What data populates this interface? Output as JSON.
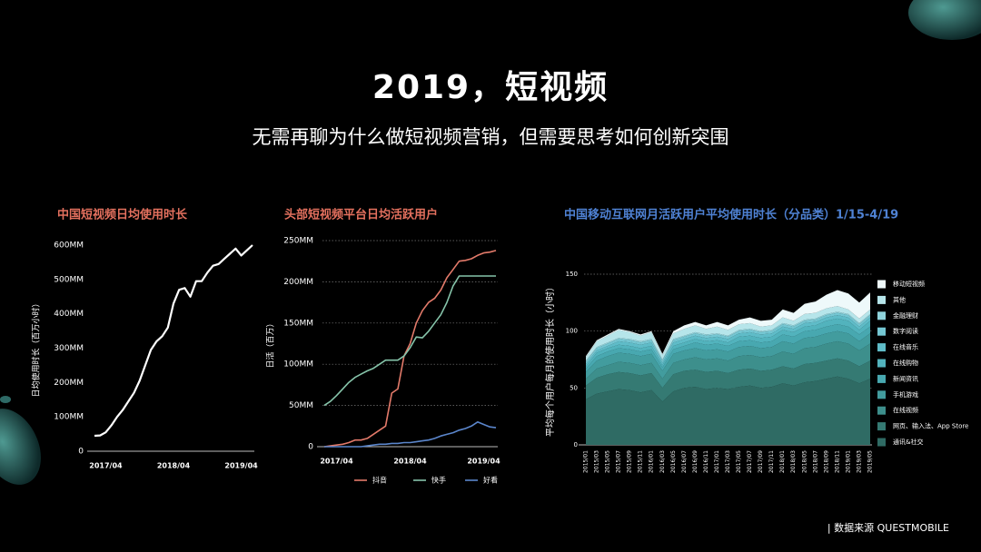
{
  "title": "2019，短视频",
  "subtitle": "无需再聊为什么做短视频营销，但需要思考如何创新突围",
  "source": "| 数据来源 QUESTMOBILE",
  "chart_data": [
    {
      "type": "line",
      "title": "中国短视频日均使用时长",
      "ylabel": "日均使用时长（百万小时）",
      "x": [
        "2017/02",
        "2017/03",
        "2017/04",
        "2017/05",
        "2017/06",
        "2017/07",
        "2017/08",
        "2017/09",
        "2017/10",
        "2017/11",
        "2017/12",
        "2018/01",
        "2018/02",
        "2018/03",
        "2018/04",
        "2018/05",
        "2018/06",
        "2018/07",
        "2018/08",
        "2018/09",
        "2018/10",
        "2018/11",
        "2018/12",
        "2019/01",
        "2019/02",
        "2019/03",
        "2019/04",
        "2019/05",
        "2019/06"
      ],
      "xticks": [
        "2017/04",
        "2018/04",
        "2019/04"
      ],
      "values": [
        45,
        46,
        55,
        75,
        100,
        120,
        145,
        170,
        205,
        250,
        295,
        320,
        335,
        360,
        430,
        470,
        475,
        450,
        495,
        495,
        520,
        540,
        545,
        560,
        575,
        590,
        570,
        585,
        600
      ],
      "color": "#ffffff",
      "ylim": [
        0,
        600
      ],
      "yticks": [
        0,
        {
          "value": 100,
          "label": "100MM"
        },
        {
          "value": 200,
          "label": "200MM"
        },
        {
          "value": 300,
          "label": "300MM"
        },
        {
          "value": 400,
          "label": "400MM"
        },
        {
          "value": 500,
          "label": "500MM"
        },
        {
          "value": 600,
          "label": "600MM"
        }
      ],
      "grid": false
    },
    {
      "type": "line",
      "title": "头部短视频平台日均活跃用户",
      "ylabel": "日活（百万）",
      "x": [
        "2017/02",
        "2017/03",
        "2017/04",
        "2017/05",
        "2017/06",
        "2017/07",
        "2017/08",
        "2017/09",
        "2017/10",
        "2017/11",
        "2017/12",
        "2018/01",
        "2018/02",
        "2018/03",
        "2018/04",
        "2018/05",
        "2018/06",
        "2018/07",
        "2018/08",
        "2018/09",
        "2018/10",
        "2018/11",
        "2018/12",
        "2019/01",
        "2019/02",
        "2019/03",
        "2019/04",
        "2019/05",
        "2019/06"
      ],
      "xticks": [
        "2017/04",
        "2018/04",
        "2019/04"
      ],
      "series": [
        {
          "name": "抖音",
          "color": "#e37a6a",
          "values": [
            0,
            1,
            2,
            3,
            5,
            8,
            8,
            10,
            15,
            20,
            25,
            65,
            70,
            110,
            125,
            150,
            165,
            175,
            180,
            190,
            205,
            215,
            225,
            226,
            228,
            232,
            235,
            236,
            238
          ]
        },
        {
          "name": "快手",
          "color": "#86c4aa",
          "values": [
            50,
            55,
            62,
            70,
            78,
            84,
            88,
            92,
            95,
            100,
            105,
            105,
            105,
            110,
            120,
            133,
            132,
            140,
            150,
            160,
            175,
            195,
            207,
            207,
            207,
            207,
            207,
            207,
            207
          ]
        },
        {
          "name": "好看",
          "color": "#5b86cc",
          "values": [
            0,
            0,
            0,
            0,
            0,
            0,
            0,
            1,
            2,
            3,
            3,
            4,
            4,
            5,
            5,
            6,
            7,
            8,
            10,
            13,
            15,
            17,
            20,
            22,
            25,
            30,
            27,
            24,
            23
          ]
        }
      ],
      "ylim": [
        0,
        250
      ],
      "yticks": [
        0,
        {
          "value": 50,
          "label": "50MM"
        },
        {
          "value": 100,
          "label": "100MM"
        },
        {
          "value": 150,
          "label": "150MM"
        },
        {
          "value": 200,
          "label": "200MM"
        },
        {
          "value": 250,
          "label": "250MM"
        }
      ],
      "grid": true,
      "legend": "bottom"
    },
    {
      "type": "area",
      "stacked": true,
      "title": "中国移动互联网月活跃用户平均使用时长（分品类）1/15-4/19",
      "ylabel": "平均每个用户每月的使用时长（小时）",
      "categories": [
        "2015/01",
        "2015/03",
        "2015/05",
        "2015/07",
        "2015/09",
        "2015/11",
        "2016/01",
        "2016/03",
        "2016/05",
        "2016/07",
        "2016/09",
        "2016/11",
        "2017/01",
        "2017/03",
        "2017/05",
        "2017/07",
        "2017/09",
        "2017/11",
        "2018/01",
        "2018/03",
        "2018/05",
        "2018/07",
        "2018/09",
        "2018/11",
        "2019/01",
        "2019/03",
        "2019/05"
      ],
      "series": [
        {
          "name": "通讯&社交",
          "color": "#2f6b64",
          "values": [
            40,
            45,
            47,
            49,
            48,
            46,
            48,
            38,
            47,
            50,
            51,
            49,
            50,
            49,
            51,
            52,
            50,
            51,
            54,
            52,
            55,
            56,
            58,
            60,
            58,
            54,
            58
          ]
        },
        {
          "name": "网页、输入法、App Store",
          "color": "#357a73",
          "values": [
            12,
            14,
            15,
            15,
            15,
            15,
            15,
            12,
            15,
            15,
            15,
            15,
            15,
            14,
            15,
            15,
            15,
            15,
            15,
            15,
            16,
            16,
            16,
            16,
            16,
            15,
            16
          ]
        },
        {
          "name": "在线视频",
          "color": "#3d8f8c",
          "values": [
            6,
            8,
            8,
            9,
            9,
            9,
            9,
            8,
            10,
            10,
            11,
            11,
            11,
            11,
            12,
            12,
            12,
            12,
            13,
            13,
            14,
            14,
            15,
            15,
            15,
            14,
            15
          ]
        },
        {
          "name": "手机游戏",
          "color": "#429c9e",
          "values": [
            6,
            7,
            8,
            8,
            8,
            8,
            8,
            7,
            8,
            8,
            8,
            8,
            8,
            8,
            8,
            8,
            8,
            8,
            9,
            9,
            9,
            9,
            9,
            9,
            9,
            8,
            9
          ]
        },
        {
          "name": "新闻资讯",
          "color": "#48a8b0",
          "values": [
            3,
            4,
            4,
            4,
            4,
            4,
            4,
            3,
            4,
            4,
            5,
            5,
            5,
            5,
            5,
            5,
            5,
            5,
            6,
            6,
            6,
            6,
            6,
            6,
            6,
            6,
            6
          ]
        },
        {
          "name": "在线购物",
          "color": "#52b3bd",
          "values": [
            2,
            3,
            3,
            3,
            3,
            3,
            3,
            2,
            3,
            3,
            3,
            3,
            3,
            3,
            4,
            4,
            4,
            4,
            4,
            4,
            4,
            4,
            5,
            5,
            5,
            4,
            5
          ]
        },
        {
          "name": "在线音乐",
          "color": "#5fbcc8",
          "values": [
            2,
            2,
            2,
            3,
            3,
            3,
            3,
            2,
            3,
            3,
            3,
            3,
            3,
            3,
            3,
            3,
            3,
            3,
            3,
            3,
            3,
            3,
            3,
            3,
            3,
            3,
            3
          ]
        },
        {
          "name": "数字阅读",
          "color": "#74c7d3",
          "values": [
            2,
            2,
            2,
            2,
            2,
            2,
            2,
            2,
            2,
            2,
            2,
            2,
            2,
            2,
            2,
            2,
            2,
            2,
            2,
            2,
            2,
            2,
            2,
            2,
            2,
            2,
            2
          ]
        },
        {
          "name": "金融理财",
          "color": "#8fd3dc",
          "values": [
            1,
            1,
            1,
            1,
            1,
            1,
            1,
            1,
            1,
            1,
            1,
            1,
            1,
            1,
            1,
            1,
            1,
            1,
            1,
            1,
            1,
            1,
            1,
            1,
            1,
            1,
            1
          ]
        },
        {
          "name": "其他",
          "color": "#b6e5ea",
          "values": [
            3,
            5,
            6,
            7,
            6,
            5,
            6,
            4,
            5,
            6,
            6,
            5,
            6,
            5,
            5,
            5,
            4,
            4,
            5,
            4,
            5,
            5,
            5,
            5,
            4,
            4,
            4
          ]
        },
        {
          "name": "移动短视频",
          "color": "#eef9fa",
          "values": [
            1,
            1,
            1,
            1,
            1,
            1,
            1,
            1,
            2,
            3,
            3,
            3,
            4,
            4,
            4,
            5,
            5,
            5,
            7,
            7,
            9,
            10,
            12,
            14,
            14,
            14,
            15
          ]
        }
      ],
      "ylim": [
        0,
        150
      ],
      "yticks": [
        0,
        50,
        100,
        150
      ],
      "grid": true,
      "legend": "right"
    }
  ]
}
